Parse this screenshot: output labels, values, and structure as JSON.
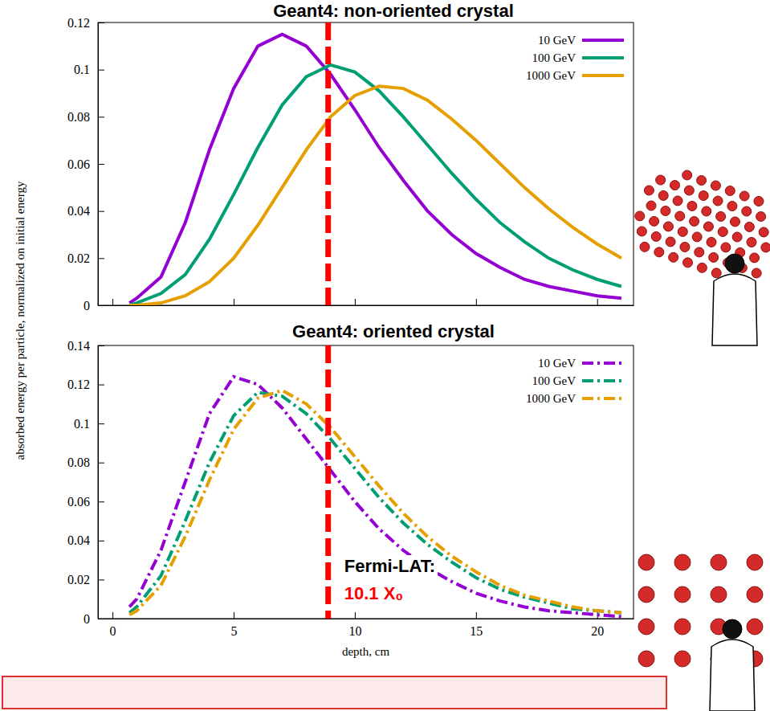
{
  "chart_data": [
    {
      "type": "line",
      "title": "Geant4: non-oriented crystal",
      "y_label": "absorbed energy per particle, normalized on initial energy",
      "x": [
        0.7,
        1,
        2,
        3,
        4,
        5,
        6,
        7,
        8,
        9,
        10,
        11,
        12,
        13,
        14,
        15,
        16,
        17,
        18,
        19,
        20,
        21
      ],
      "series": [
        {
          "name": "10 GeV",
          "color": "#9400d3",
          "values": [
            0.001,
            0.003,
            0.012,
            0.035,
            0.066,
            0.092,
            0.11,
            0.115,
            0.11,
            0.098,
            0.083,
            0.067,
            0.053,
            0.04,
            0.03,
            0.022,
            0.016,
            0.011,
            0.008,
            0.006,
            0.004,
            0.003
          ]
        },
        {
          "name": "100 GeV",
          "color": "#009e73",
          "values": [
            0.0,
            0.001,
            0.005,
            0.013,
            0.028,
            0.047,
            0.067,
            0.085,
            0.097,
            0.102,
            0.099,
            0.091,
            0.08,
            0.068,
            0.056,
            0.045,
            0.035,
            0.027,
            0.02,
            0.015,
            0.011,
            0.008
          ]
        },
        {
          "name": "1000 GeV",
          "color": "#e69f00",
          "values": [
            0.0,
            0.0,
            0.001,
            0.004,
            0.01,
            0.02,
            0.034,
            0.05,
            0.066,
            0.08,
            0.089,
            0.093,
            0.092,
            0.087,
            0.079,
            0.07,
            0.06,
            0.05,
            0.041,
            0.033,
            0.026,
            0.02
          ]
        }
      ],
      "xlim": [
        -0.6,
        21.5
      ],
      "ylim": [
        0,
        0.12
      ],
      "xticks": [
        0,
        5,
        10,
        15,
        20
      ],
      "yticks": [
        0,
        0.02,
        0.04,
        0.06,
        0.08,
        0.1,
        0.12
      ],
      "tick_labels": "y",
      "legend": "upper right",
      "line_style": "solid"
    },
    {
      "type": "line",
      "title": "Geant4: oriented crystal",
      "x_label": "depth, cm",
      "x": [
        0.7,
        1,
        2,
        3,
        4,
        5,
        6,
        7,
        8,
        9,
        10,
        11,
        12,
        13,
        14,
        15,
        16,
        17,
        18,
        19,
        20,
        21
      ],
      "series": [
        {
          "name": "10 GeV",
          "color": "#9400d3",
          "values": [
            0.006,
            0.01,
            0.035,
            0.07,
            0.105,
            0.124,
            0.12,
            0.108,
            0.092,
            0.076,
            0.06,
            0.046,
            0.035,
            0.026,
            0.019,
            0.013,
            0.009,
            0.006,
            0.004,
            0.003,
            0.002,
            0.001
          ]
        },
        {
          "name": "100 GeV",
          "color": "#009e73",
          "values": [
            0.003,
            0.006,
            0.022,
            0.05,
            0.08,
            0.104,
            0.116,
            0.114,
            0.105,
            0.092,
            0.077,
            0.062,
            0.049,
            0.038,
            0.029,
            0.021,
            0.015,
            0.011,
            0.008,
            0.005,
            0.004,
            0.003
          ]
        },
        {
          "name": "1000 GeV",
          "color": "#e69f00",
          "values": [
            0.002,
            0.004,
            0.017,
            0.042,
            0.071,
            0.097,
            0.113,
            0.117,
            0.11,
            0.098,
            0.083,
            0.068,
            0.054,
            0.042,
            0.032,
            0.024,
            0.017,
            0.012,
            0.009,
            0.006,
            0.004,
            0.003
          ]
        }
      ],
      "xlim": [
        -0.6,
        21.5
      ],
      "ylim": [
        0,
        0.14
      ],
      "xticks": [
        0,
        5,
        10,
        15,
        20
      ],
      "yticks": [
        0,
        0.02,
        0.04,
        0.06,
        0.08,
        0.1,
        0.12,
        0.14
      ],
      "legend": "upper right",
      "line_style": "dashdot",
      "annotation": {
        "text": [
          "Fermi-LAT:",
          "10.1 X₀"
        ],
        "x": 8.9,
        "color": "#ff0000"
      }
    }
  ]
}
